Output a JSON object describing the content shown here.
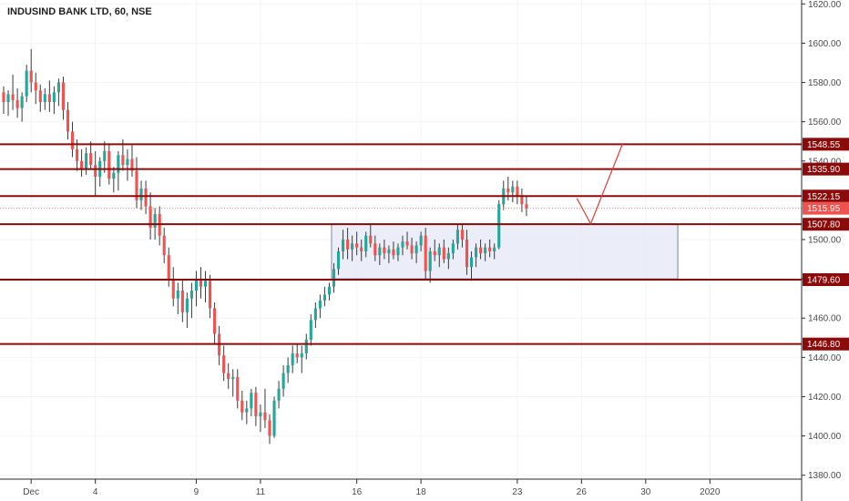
{
  "chart_data": {
    "type": "candlestick",
    "title": "INDUSIND BANK LTD, 60, NSE",
    "x_tick_labels": [
      {
        "label": "Dec",
        "bar": 6
      },
      {
        "label": "4",
        "bar": 20
      },
      {
        "label": "9",
        "bar": 42
      },
      {
        "label": "11",
        "bar": 56
      },
      {
        "label": "16",
        "bar": 77
      },
      {
        "label": "18",
        "bar": 91
      },
      {
        "label": "23",
        "bar": 112
      },
      {
        "label": "26",
        "bar": 126
      },
      {
        "label": "30",
        "bar": 140
      },
      {
        "label": "2020",
        "bar": 154
      }
    ],
    "y_ticks": [
      "1380.00",
      "1400.00",
      "1420.00",
      "1440.00",
      "1460.00",
      "1480.00",
      "1500.00",
      "1520.00",
      "1540.00",
      "1560.00",
      "1580.00",
      "1600.00",
      "1620.00"
    ],
    "ylim": [
      1378,
      1622
    ],
    "xlim": [
      0,
      174
    ],
    "levels": [
      {
        "value": 1548.55,
        "label": "1548.55"
      },
      {
        "value": 1535.9,
        "label": "1535.90"
      },
      {
        "value": 1522.15,
        "label": "1522.15"
      },
      {
        "value": 1507.8,
        "label": "1507.80"
      },
      {
        "value": 1479.6,
        "label": "1479.60"
      },
      {
        "value": 1446.8,
        "label": "1446.80"
      }
    ],
    "current_price": {
      "value": 1515.95,
      "label": "1515.95"
    },
    "range_box": {
      "x0": 71.5,
      "x1": 147,
      "y_top": 1508,
      "y_bottom": 1480
    },
    "projection": [
      [
        125,
        1521
      ],
      [
        128,
        1508
      ],
      [
        135,
        1549
      ]
    ],
    "candles": [
      [
        1575,
        1578,
        1564,
        1570
      ],
      [
        1570,
        1576,
        1563,
        1574
      ],
      [
        1574,
        1584,
        1566,
        1571
      ],
      [
        1571,
        1577,
        1562,
        1567
      ],
      [
        1567,
        1575,
        1560,
        1573
      ],
      [
        1573,
        1589,
        1570,
        1586
      ],
      [
        1586,
        1597,
        1575,
        1580
      ],
      [
        1580,
        1585,
        1569,
        1576
      ],
      [
        1576,
        1579,
        1565,
        1570
      ],
      [
        1570,
        1577,
        1566,
        1574
      ],
      [
        1574,
        1581,
        1565,
        1570
      ],
      [
        1570,
        1578,
        1564,
        1575
      ],
      [
        1575,
        1582,
        1568,
        1580
      ],
      [
        1580,
        1583,
        1561,
        1566
      ],
      [
        1566,
        1570,
        1551,
        1555
      ],
      [
        1555,
        1560,
        1542,
        1546
      ],
      [
        1546,
        1551,
        1535,
        1540
      ],
      [
        1540,
        1546,
        1532,
        1536
      ],
      [
        1536,
        1547,
        1533,
        1544
      ],
      [
        1544,
        1550,
        1536,
        1538
      ],
      [
        1538,
        1545,
        1522,
        1532
      ],
      [
        1532,
        1542,
        1527,
        1540
      ],
      [
        1540,
        1550,
        1534,
        1545
      ],
      [
        1545,
        1549,
        1528,
        1531
      ],
      [
        1531,
        1537,
        1524,
        1534
      ],
      [
        1534,
        1545,
        1525,
        1543
      ],
      [
        1543,
        1551,
        1535,
        1538
      ],
      [
        1538,
        1546,
        1530,
        1541
      ],
      [
        1541,
        1548,
        1532,
        1535
      ],
      [
        1535,
        1542,
        1516,
        1520
      ],
      [
        1520,
        1530,
        1515,
        1526
      ],
      [
        1526,
        1530,
        1513,
        1517
      ],
      [
        1517,
        1524,
        1500,
        1506
      ],
      [
        1506,
        1516,
        1500,
        1513
      ],
      [
        1513,
        1517,
        1497,
        1502
      ],
      [
        1502,
        1506,
        1488,
        1492
      ],
      [
        1492,
        1496,
        1476,
        1480
      ],
      [
        1480,
        1486,
        1466,
        1470
      ],
      [
        1470,
        1478,
        1462,
        1474
      ],
      [
        1474,
        1480,
        1458,
        1463
      ],
      [
        1463,
        1473,
        1455,
        1470
      ],
      [
        1470,
        1478,
        1460,
        1474
      ],
      [
        1474,
        1484,
        1466,
        1480
      ],
      [
        1480,
        1486,
        1470,
        1476
      ],
      [
        1476,
        1484,
        1468,
        1479
      ],
      [
        1479,
        1482,
        1460,
        1465
      ],
      [
        1465,
        1468,
        1447,
        1452
      ],
      [
        1452,
        1456,
        1436,
        1441
      ],
      [
        1441,
        1446,
        1428,
        1432
      ],
      [
        1432,
        1437,
        1424,
        1429
      ],
      [
        1429,
        1434,
        1420,
        1430
      ],
      [
        1430,
        1434,
        1414,
        1418
      ],
      [
        1418,
        1423,
        1408,
        1412
      ],
      [
        1412,
        1418,
        1406,
        1414
      ],
      [
        1414,
        1424,
        1410,
        1422
      ],
      [
        1422,
        1425,
        1405,
        1410
      ],
      [
        1410,
        1416,
        1402,
        1412
      ],
      [
        1412,
        1424,
        1404,
        1408
      ],
      [
        1408,
        1411,
        1396,
        1400
      ],
      [
        1400,
        1420,
        1399,
        1418
      ],
      [
        1418,
        1428,
        1414,
        1424
      ],
      [
        1424,
        1436,
        1420,
        1432
      ],
      [
        1432,
        1440,
        1427,
        1436
      ],
      [
        1436,
        1446,
        1432,
        1442
      ],
      [
        1442,
        1447,
        1437,
        1440
      ],
      [
        1440,
        1446,
        1432,
        1442
      ],
      [
        1442,
        1452,
        1439,
        1449
      ],
      [
        1449,
        1462,
        1446,
        1459
      ],
      [
        1459,
        1468,
        1455,
        1465
      ],
      [
        1465,
        1472,
        1460,
        1469
      ],
      [
        1469,
        1476,
        1466,
        1472
      ],
      [
        1472,
        1478,
        1469,
        1476
      ],
      [
        1476,
        1488,
        1473,
        1485
      ],
      [
        1485,
        1496,
        1482,
        1494
      ],
      [
        1494,
        1505,
        1490,
        1500
      ],
      [
        1500,
        1506,
        1490,
        1495
      ],
      [
        1495,
        1502,
        1489,
        1498
      ],
      [
        1498,
        1504,
        1492,
        1496
      ],
      [
        1496,
        1500,
        1489,
        1494
      ],
      [
        1494,
        1504,
        1491,
        1502
      ],
      [
        1502,
        1508,
        1496,
        1498
      ],
      [
        1498,
        1502,
        1489,
        1492
      ],
      [
        1492,
        1498,
        1487,
        1496
      ],
      [
        1496,
        1500,
        1490,
        1493
      ],
      [
        1493,
        1497,
        1488,
        1495
      ],
      [
        1495,
        1499,
        1490,
        1492
      ],
      [
        1492,
        1498,
        1489,
        1496
      ],
      [
        1496,
        1502,
        1492,
        1499
      ],
      [
        1499,
        1504,
        1495,
        1497
      ],
      [
        1497,
        1501,
        1490,
        1493
      ],
      [
        1493,
        1499,
        1488,
        1497
      ],
      [
        1497,
        1504,
        1494,
        1502
      ],
      [
        1502,
        1506,
        1480,
        1484
      ],
      [
        1484,
        1496,
        1478,
        1494
      ],
      [
        1494,
        1500,
        1489,
        1492
      ],
      [
        1492,
        1498,
        1486,
        1496
      ],
      [
        1496,
        1500,
        1488,
        1490
      ],
      [
        1490,
        1496,
        1485,
        1493
      ],
      [
        1493,
        1500,
        1490,
        1498
      ],
      [
        1498,
        1508,
        1495,
        1505
      ],
      [
        1505,
        1508,
        1496,
        1500
      ],
      [
        1500,
        1505,
        1482,
        1486
      ],
      [
        1486,
        1494,
        1479,
        1491
      ],
      [
        1491,
        1498,
        1486,
        1496
      ],
      [
        1496,
        1500,
        1490,
        1493
      ],
      [
        1493,
        1498,
        1489,
        1496
      ],
      [
        1496,
        1500,
        1491,
        1494
      ],
      [
        1494,
        1498,
        1490,
        1496
      ],
      [
        1496,
        1520,
        1495,
        1518
      ],
      [
        1518,
        1530,
        1515,
        1526
      ],
      [
        1526,
        1532,
        1520,
        1524
      ],
      [
        1524,
        1530,
        1519,
        1527
      ],
      [
        1527,
        1530,
        1518,
        1522
      ],
      [
        1522,
        1526,
        1514,
        1518
      ],
      [
        1518,
        1522,
        1512,
        1516
      ]
    ]
  }
}
